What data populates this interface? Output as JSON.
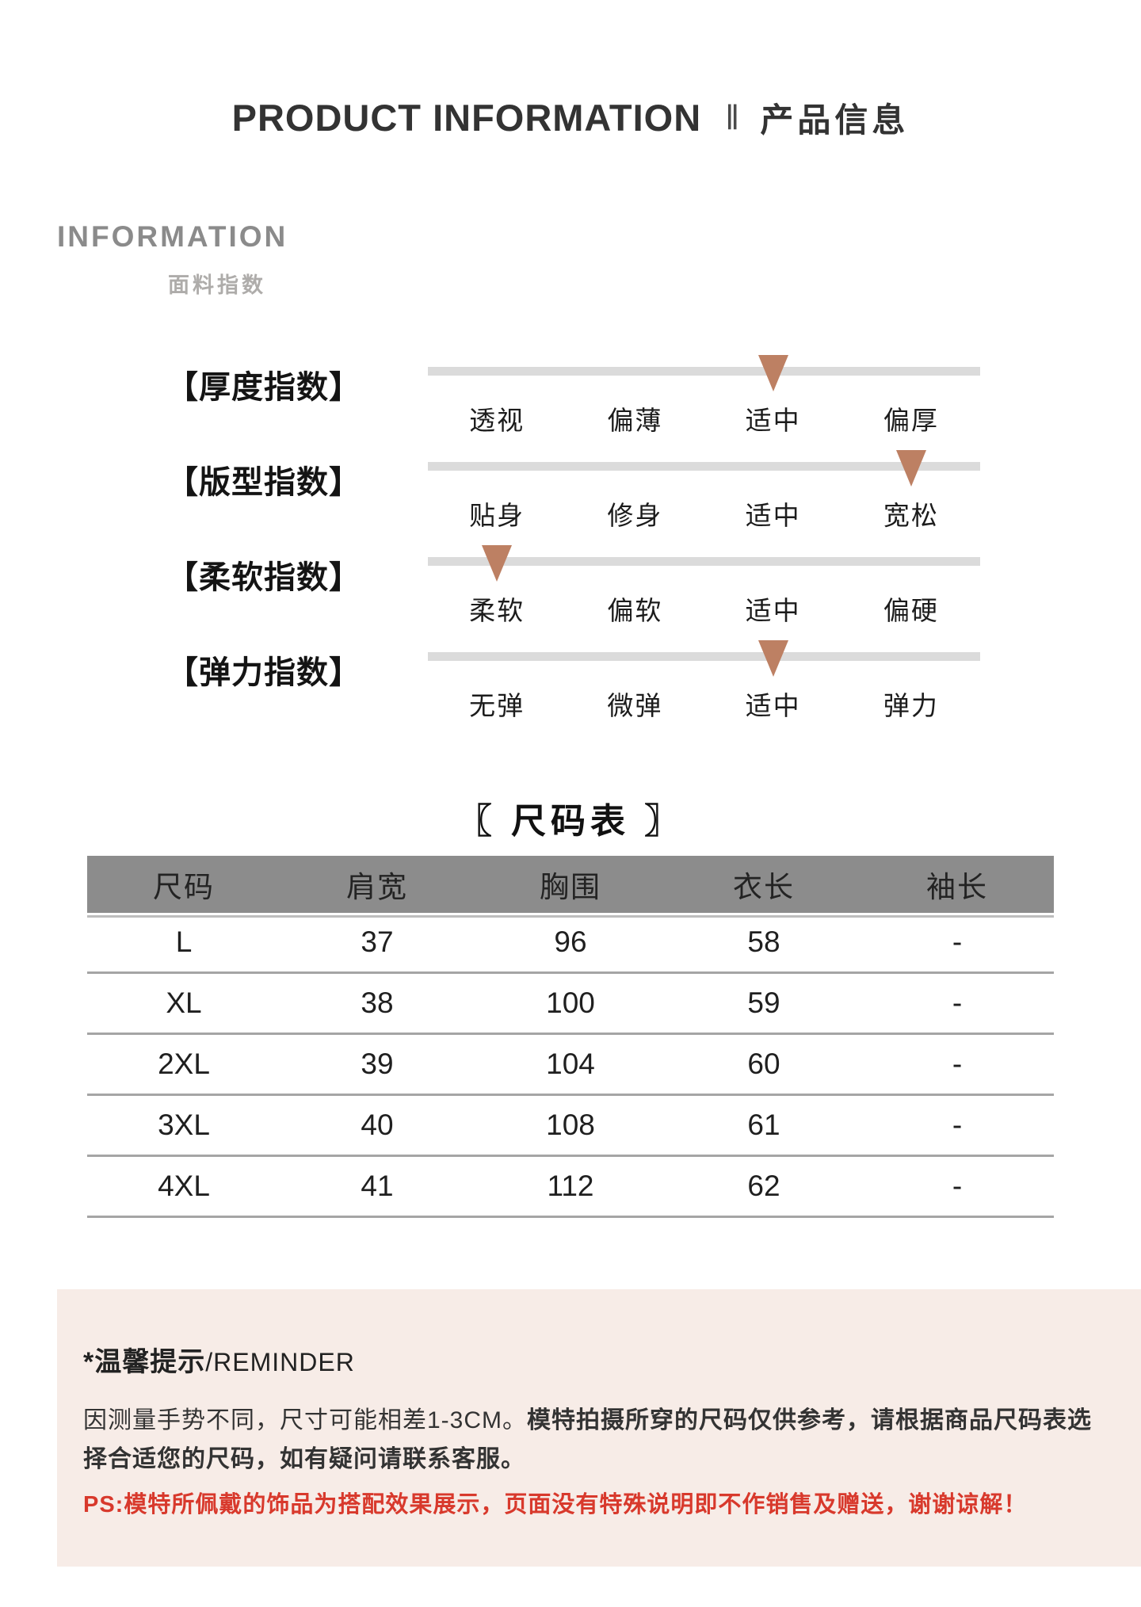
{
  "header": {
    "title_en": "PRODUCT INFORMATION",
    "separator": "‖",
    "title_zh": "产品信息"
  },
  "info_section": {
    "heading": "INFORMATION",
    "subheading": "面料指数"
  },
  "indices": {
    "rows": [
      {
        "label": "【厚度指数】",
        "options": [
          "透视",
          "偏薄",
          "适中",
          "偏厚"
        ],
        "marker_index": 2
      },
      {
        "label": "【版型指数】",
        "options": [
          "贴身",
          "修身",
          "适中",
          "宽松"
        ],
        "marker_index": 3
      },
      {
        "label": "【柔软指数】",
        "options": [
          "柔软",
          "偏软",
          "适中",
          "偏硬"
        ],
        "marker_index": 0
      },
      {
        "label": "【弹力指数】",
        "options": [
          "无弹",
          "微弹",
          "适中",
          "弹力"
        ],
        "marker_index": 2
      }
    ]
  },
  "size_table": {
    "title": "〖 尺码表 〗",
    "columns": [
      "尺码",
      "肩宽",
      "胸围",
      "衣长",
      "袖长"
    ],
    "rows": [
      [
        "L",
        "37",
        "96",
        "58",
        "-"
      ],
      [
        "XL",
        "38",
        "100",
        "59",
        "-"
      ],
      [
        "2XL",
        "39",
        "104",
        "60",
        "-"
      ],
      [
        "3XL",
        "40",
        "108",
        "61",
        "-"
      ],
      [
        "4XL",
        "41",
        "112",
        "62",
        "-"
      ]
    ]
  },
  "reminder": {
    "title_zh": "*温馨提示",
    "title_en": "/REMINDER",
    "body_1": "因测量手势不同，尺寸可能相差1-3CM。",
    "body_2": "模特拍摄所穿的尺码仅供参考，请根据商品尺码表选择合适您的尺码，如有疑问请联系客服。",
    "ps": "PS:模特所佩戴的饰品为搭配效果展示，页面没有特殊说明即不作销售及赠送，谢谢谅解！"
  },
  "colors": {
    "marker": "#bd8063",
    "scale_bar": "#dbdbdb",
    "table_header_bg": "#8c8c8c",
    "reminder_bg": "#f7ece7",
    "ps_red": "#d8392c"
  }
}
